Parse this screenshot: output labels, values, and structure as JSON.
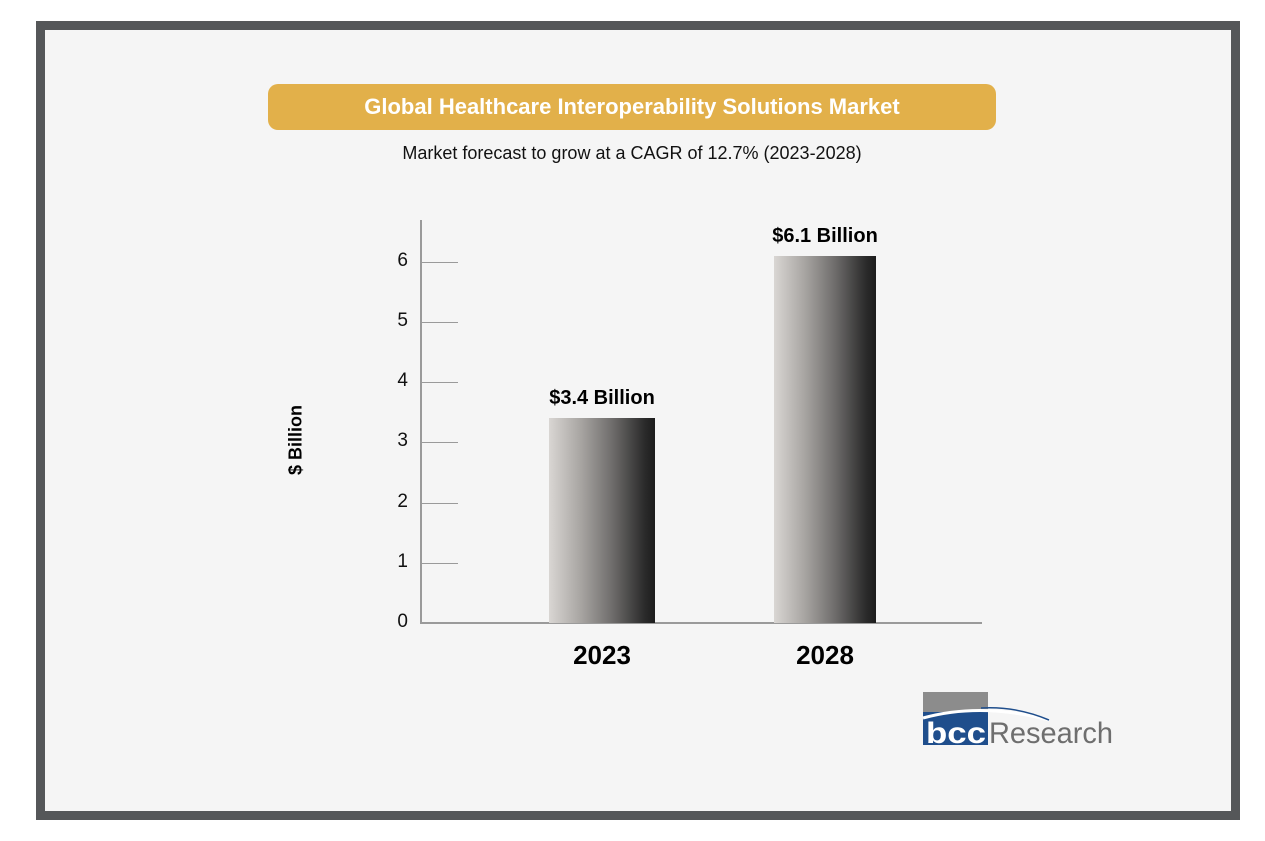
{
  "title": "Global Healthcare Interoperability Solutions Market",
  "subtitle": "Market forecast to grow at a CAGR of 12.7% (2023-2028)",
  "brand": {
    "logo_mark": "bcc",
    "logo_text": "Research",
    "colors": {
      "title_bg": "#e2b04a",
      "logo_blue": "#1f4e8c",
      "logo_gray": "#8c8c8c",
      "frame": "#555759"
    }
  },
  "chart_data": {
    "type": "bar",
    "title": "Global Healthcare Interoperability Solutions Market",
    "subtitle": "Market forecast to grow at a CAGR of 12.7% (2023-2028)",
    "categories": [
      "2023",
      "2028"
    ],
    "values": [
      3.4,
      6.1
    ],
    "data_labels": [
      "$3.4 Billion",
      "$6.1 Billion"
    ],
    "xlabel": "",
    "ylabel": "$ Billion",
    "ylim": [
      0,
      6.5
    ],
    "yticks": [
      "0",
      "1",
      "2",
      "3",
      "4",
      "5",
      "6"
    ],
    "grid": false,
    "legend": null
  }
}
